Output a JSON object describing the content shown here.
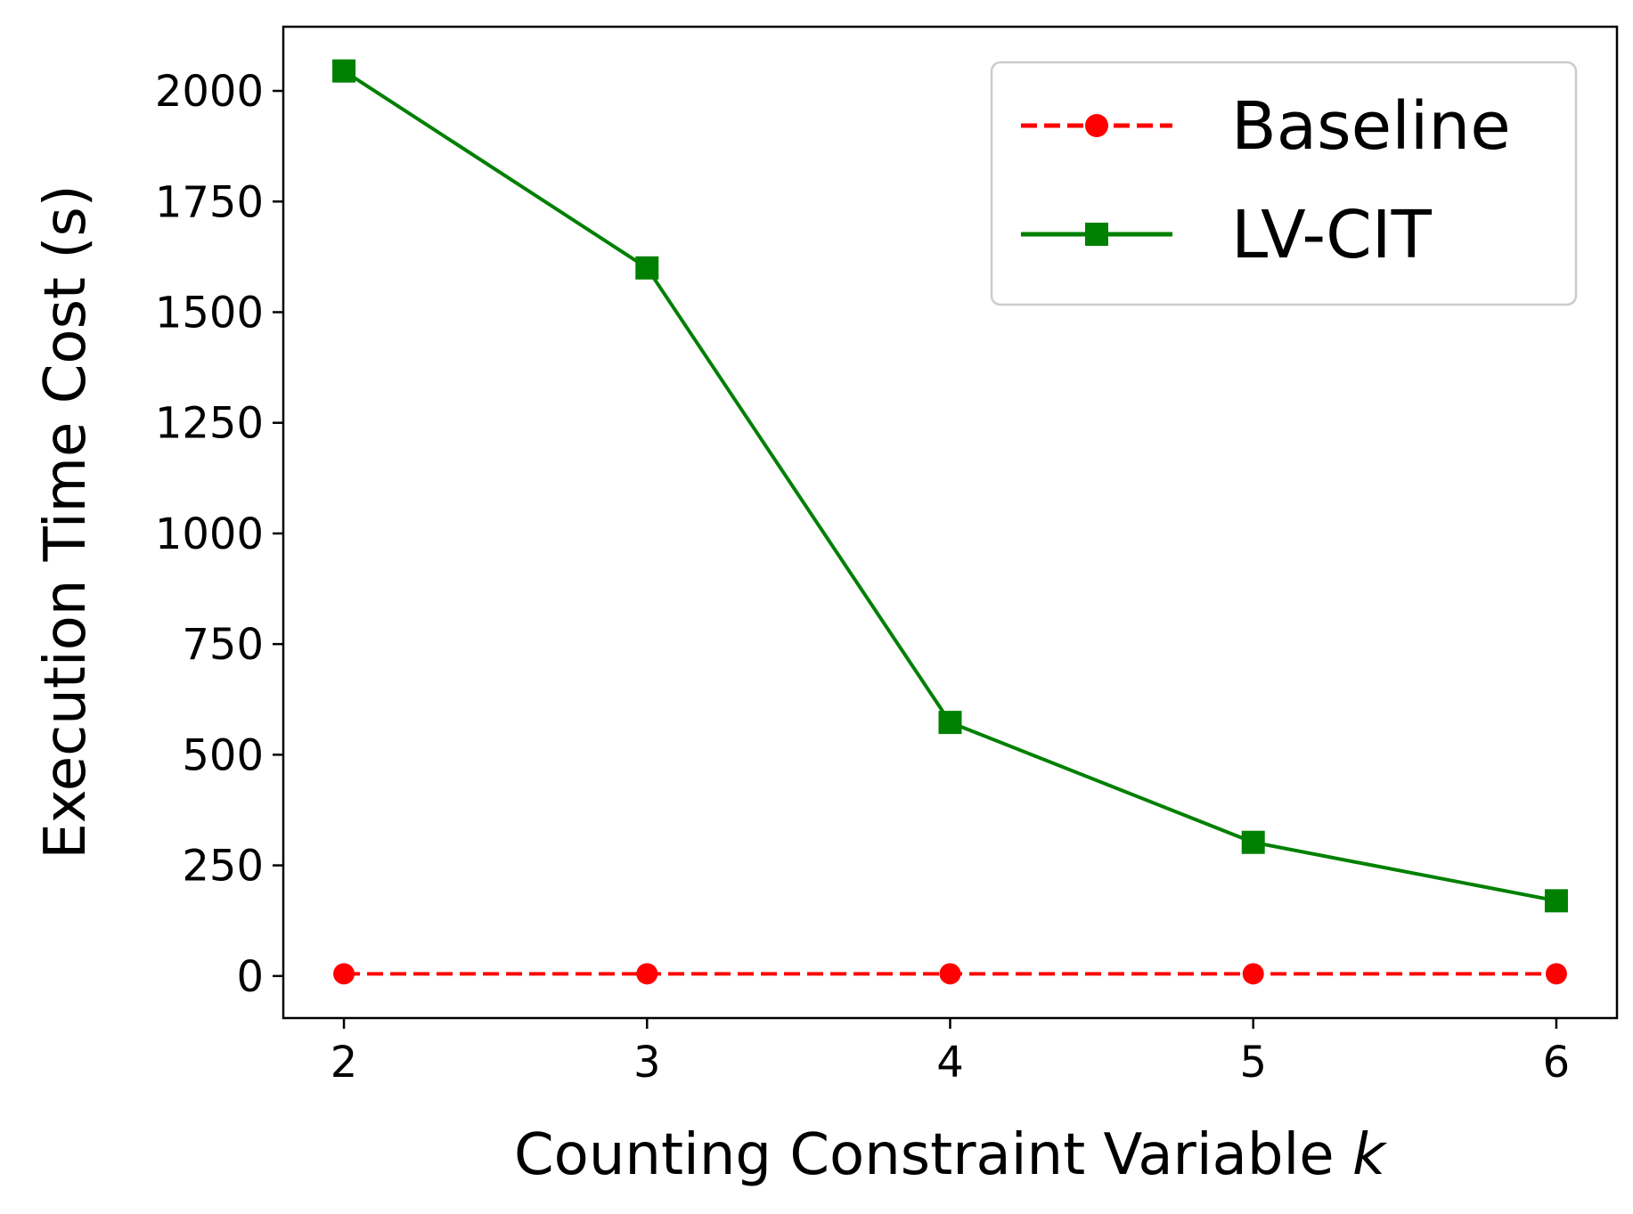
{
  "chart_data": {
    "type": "line",
    "title": "",
    "xlabel": "Counting Constraint Variable",
    "xlabel_var": "k",
    "ylabel": "Execution Time Cost (s)",
    "x": [
      2,
      3,
      4,
      5,
      6
    ],
    "xlim": [
      1.8,
      6.2
    ],
    "ylim": [
      -95,
      2145
    ],
    "xticks": [
      "2",
      "3",
      "4",
      "5",
      "6"
    ],
    "yticks": [
      0,
      250,
      500,
      750,
      1000,
      1250,
      1500,
      1750,
      2000
    ],
    "ytick_labels": [
      "0",
      "250",
      "500",
      "750",
      "1000",
      "1250",
      "1500",
      "1750",
      "2000"
    ],
    "grid": false,
    "legend_position": "top-right",
    "series": [
      {
        "name": "Baseline",
        "values": [
          5,
          5,
          5,
          5,
          5
        ],
        "color": "#ff0000",
        "line_style": "dashed",
        "marker": "circle"
      },
      {
        "name": "LV-CIT",
        "values": [
          2045,
          1600,
          573,
          302,
          170
        ],
        "color": "#008000",
        "line_style": "solid",
        "marker": "square"
      }
    ]
  }
}
